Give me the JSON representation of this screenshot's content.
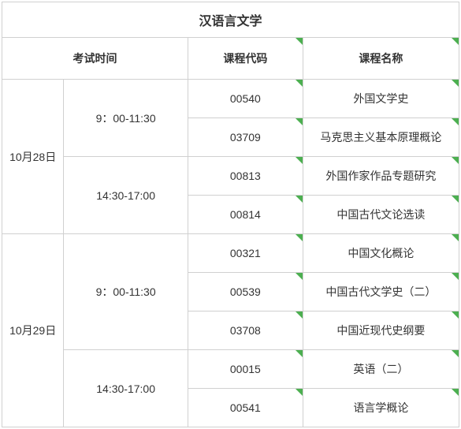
{
  "title": "汉语言文学",
  "headers": {
    "exam_time": "考试时间",
    "course_code": "课程代码",
    "course_name": "课程名称"
  },
  "schedule": [
    {
      "date": "10月28日",
      "sessions": [
        {
          "time": "9：00-11:30",
          "courses": [
            {
              "code": "00540",
              "name": "外国文学史"
            },
            {
              "code": "03709",
              "name": "马克思主义基本原理概论"
            }
          ]
        },
        {
          "time": "14:30-17:00",
          "courses": [
            {
              "code": "00813",
              "name": "外国作家作品专题研究"
            },
            {
              "code": "00814",
              "name": "中国古代文论选读"
            }
          ]
        }
      ]
    },
    {
      "date": "10月29日",
      "sessions": [
        {
          "time": "9：00-11:30",
          "courses": [
            {
              "code": "00321",
              "name": "中国文化概论"
            },
            {
              "code": "00539",
              "name": "中国古代文学史（二）"
            },
            {
              "code": "03708",
              "name": "中国近现代史纲要"
            }
          ]
        },
        {
          "time": "14:30-17:00",
          "courses": [
            {
              "code": "00015",
              "name": "英语（二）"
            },
            {
              "code": "00541",
              "name": "语言学概论"
            }
          ]
        }
      ]
    }
  ],
  "colors": {
    "border": "#d0d0d0",
    "accent": "#4caf50",
    "text": "#333333",
    "background": "#ffffff"
  }
}
